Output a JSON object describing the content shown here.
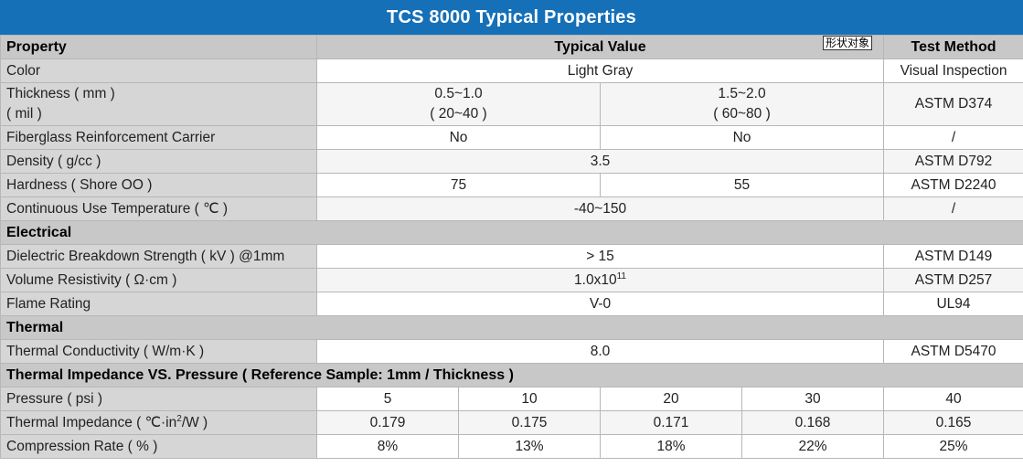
{
  "title": "TCS 8000 Typical Properties",
  "stamp_label": "形状对象",
  "header": {
    "property": "Property",
    "typical_value": "Typical Value",
    "test_method": "Test Method"
  },
  "rows": {
    "color": {
      "label": "Color",
      "value": "Light Gray",
      "method": "Visual Inspection"
    },
    "thickness": {
      "label_line1": "Thickness ( mm )",
      "label_line2": "( mil )",
      "a_line1": "0.5~1.0",
      "a_line2": "( 20~40 )",
      "b_line1": "1.5~2.0",
      "b_line2": "( 60~80 )",
      "method": "ASTM D374"
    },
    "fiberglass": {
      "label": "Fiberglass Reinforcement Carrier",
      "a": "No",
      "b": "No",
      "method": "/"
    },
    "density": {
      "label": "Density ( g/cc )",
      "value": "3.5",
      "method": "ASTM D792"
    },
    "hardness": {
      "label": "Hardness ( Shore OO )",
      "a": "75",
      "b": "55",
      "method": "ASTM D2240"
    },
    "continuous_temp": {
      "label": "Continuous Use Temperature ( ℃ )",
      "value": "-40~150",
      "method": "/"
    }
  },
  "electrical": {
    "section": "Electrical",
    "dielectric": {
      "label": "Dielectric Breakdown Strength ( kV ) @1mm",
      "value": "> 15",
      "method": "ASTM D149"
    },
    "volume_resistivity": {
      "label": "Volume Resistivity ( Ω·cm )",
      "value_base": "1.0x10",
      "value_exp": "11",
      "method": "ASTM D257"
    },
    "flame": {
      "label": "Flame Rating",
      "value": "V-0",
      "method": "UL94"
    }
  },
  "thermal": {
    "section": "Thermal",
    "conductivity": {
      "label": "Thermal Conductivity ( W/m·K )",
      "value": "8.0",
      "method": "ASTM D5470"
    }
  },
  "impedance": {
    "section": "Thermal Impedance VS. Pressure ( Reference Sample: 1mm / Thickness )",
    "pressure_label": "Pressure ( psi )",
    "pressure": [
      "5",
      "10",
      "20",
      "30",
      "40"
    ],
    "impedance_label_pre": "Thermal Impedance ( ℃·in",
    "impedance_label_exp": "2",
    "impedance_label_post": "/W )",
    "impedance": [
      "0.179",
      "0.175",
      "0.171",
      "0.168",
      "0.165"
    ],
    "compression_label": "Compression Rate ( % )",
    "compression": [
      "8%",
      "13%",
      "18%",
      "22%",
      "25%"
    ]
  }
}
